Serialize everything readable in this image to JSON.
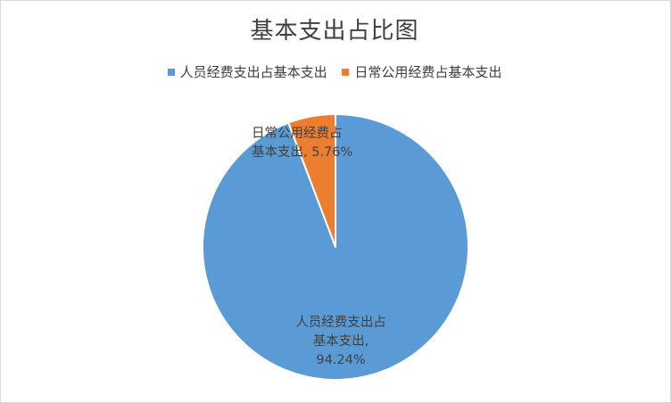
{
  "chart_data": {
    "type": "pie",
    "title": "基本支出占比图",
    "categories": [
      "人员经费支出占基本支出",
      "日常公用经费占基本支出"
    ],
    "values": [
      94.24,
      5.76
    ],
    "unit": "%",
    "colors": [
      "#5b9bd5",
      "#ed7d31"
    ],
    "legend_position": "top",
    "data_labels": [
      {
        "line1": "人员经费支出占",
        "line2": "基本支出,",
        "line3": "94.24%"
      },
      {
        "line1": "日常公用经费占",
        "line2": "基本支出, 5.76%"
      }
    ]
  }
}
